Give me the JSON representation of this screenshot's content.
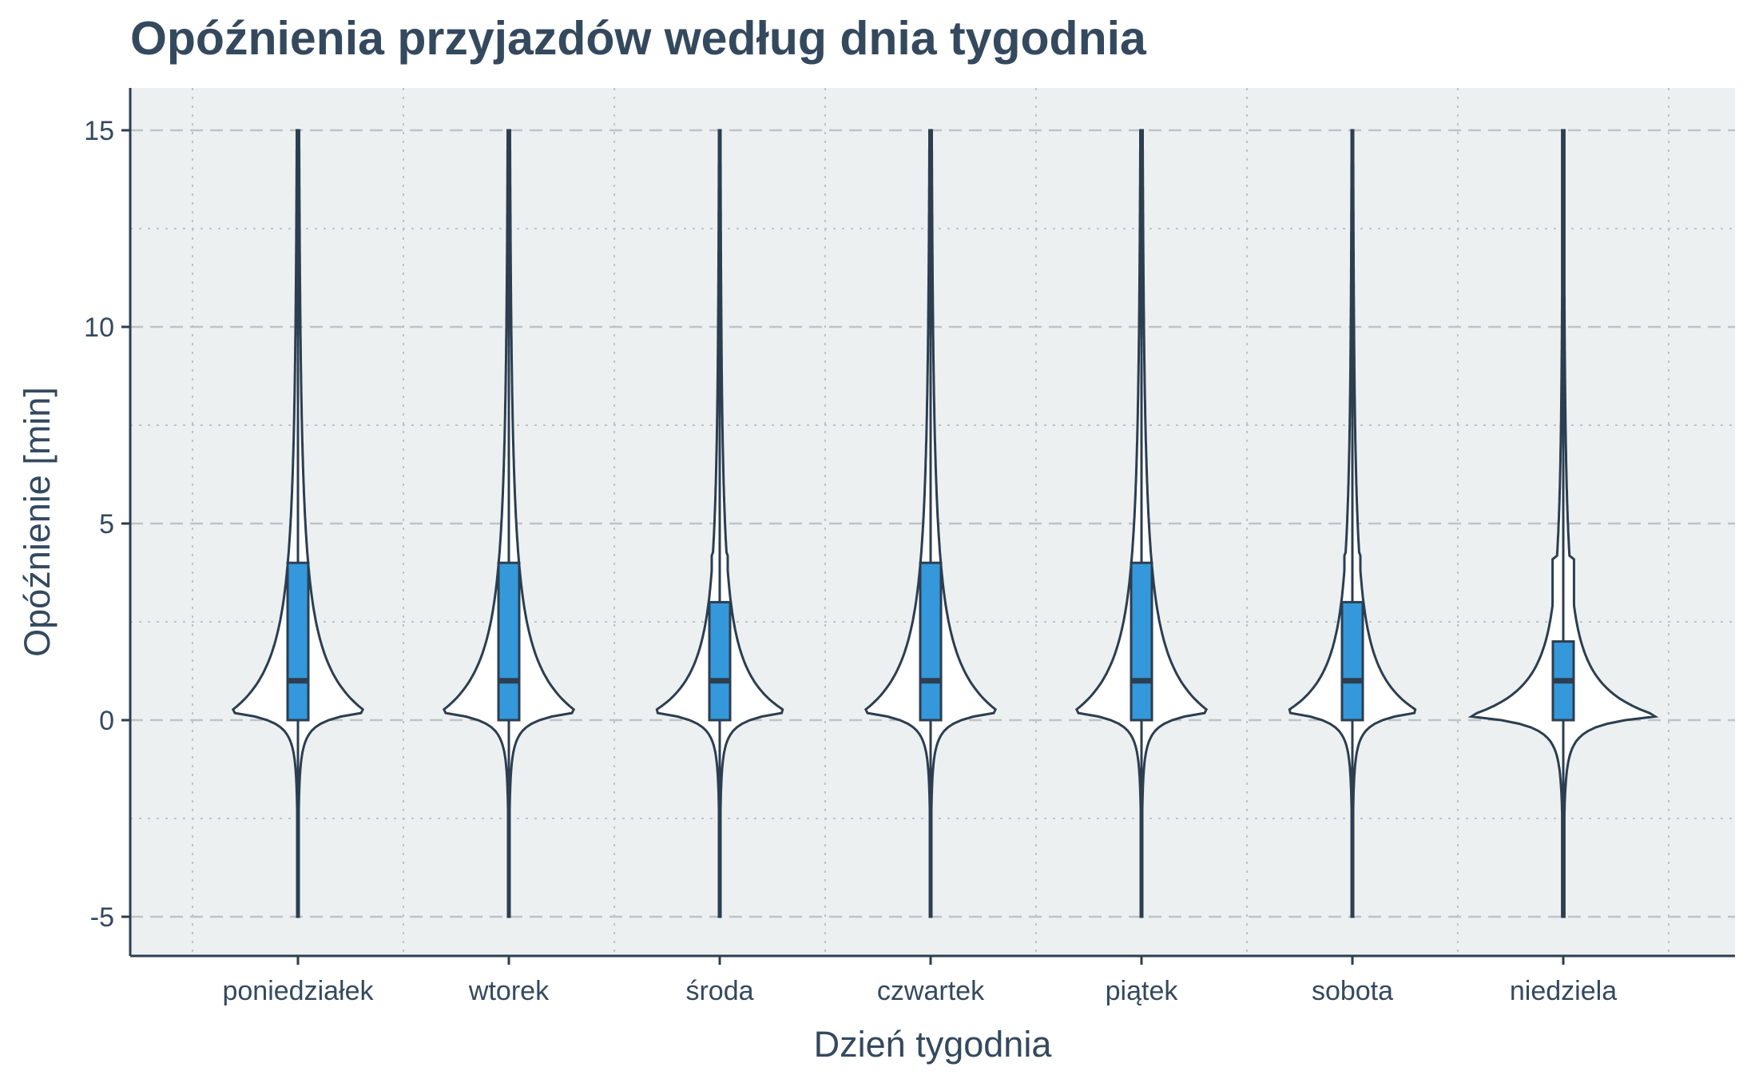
{
  "chart_data": {
    "type": "violin",
    "title": "Opóźnienia przyjazdów według dnia tygodnia",
    "xlabel": "Dzień tygodnia",
    "ylabel": "Opóźnienie [min]",
    "ylim": [
      -6,
      16
    ],
    "yticks": [
      -5,
      0,
      5,
      10,
      15
    ],
    "ytick_labels": [
      "-5",
      "0",
      "5",
      "10",
      "15"
    ],
    "grid": true,
    "colors": {
      "background": "#ecf0f1",
      "violin_fill": "#ffffff",
      "violin_outline": "#2c3e50",
      "box_fill": "#3498db",
      "text": "#34495e",
      "axis": "#2c3e50"
    },
    "categories": [
      "poniedziałek",
      "wtorek",
      "środa",
      "czwartek",
      "piątek",
      "sobota",
      "niedziela"
    ],
    "series": [
      {
        "category": "poniedziałek",
        "min": -5,
        "q1": 0,
        "median": 1,
        "q3": 4,
        "max": 15,
        "whisker_low": -5,
        "whisker_high": 15,
        "peak": 0.2
      },
      {
        "category": "wtorek",
        "min": -5,
        "q1": 0,
        "median": 1,
        "q3": 4,
        "max": 15,
        "whisker_low": -5,
        "whisker_high": 15,
        "peak": 0.2
      },
      {
        "category": "środa",
        "min": -5,
        "q1": 0,
        "median": 1,
        "q3": 3,
        "max": 15,
        "whisker_low": -5,
        "whisker_high": 15,
        "peak": 0.2
      },
      {
        "category": "czwartek",
        "min": -5,
        "q1": 0,
        "median": 1,
        "q3": 4,
        "max": 15,
        "whisker_low": -5,
        "whisker_high": 15,
        "peak": 0.2
      },
      {
        "category": "piątek",
        "min": -5,
        "q1": 0,
        "median": 1,
        "q3": 4,
        "max": 15,
        "whisker_low": -5,
        "whisker_high": 15,
        "peak": 0.2
      },
      {
        "category": "sobota",
        "min": -5,
        "q1": 0,
        "median": 1,
        "q3": 3,
        "max": 15,
        "whisker_low": -5,
        "whisker_high": 15,
        "peak": 0.2
      },
      {
        "category": "niedziela",
        "min": -5,
        "q1": 0,
        "median": 1,
        "q3": 2,
        "max": 15,
        "whisker_low": -5,
        "whisker_high": 15,
        "peak": 0.1
      }
    ]
  }
}
